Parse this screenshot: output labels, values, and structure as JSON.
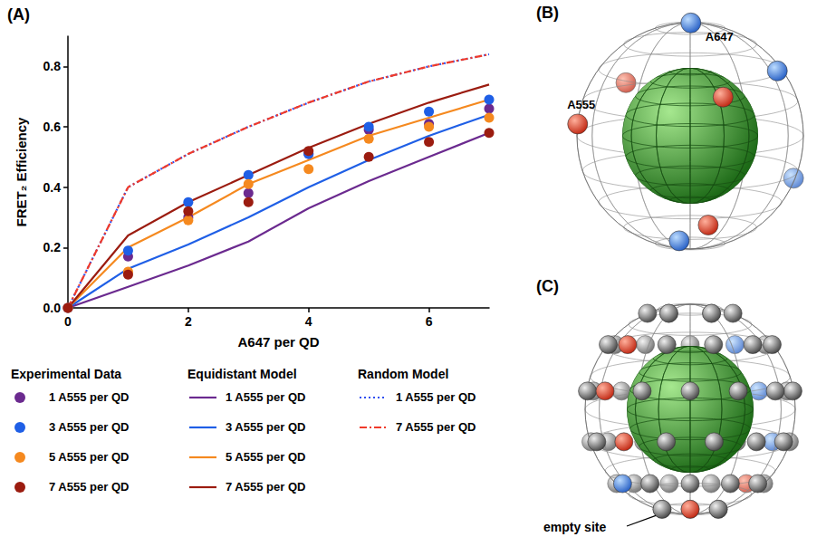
{
  "figure": {
    "panel_labels": {
      "A": "(A)",
      "B": "(B)",
      "C": "(C)"
    }
  },
  "chart_data": {
    "type": "scatter",
    "x_label": "A647 per QD",
    "y_label": "FRET₂ Efficiency",
    "x": [
      0,
      1,
      2,
      3,
      4,
      5,
      6,
      7
    ],
    "xlim": [
      0,
      7
    ],
    "xticks": [
      0,
      2,
      4,
      6
    ],
    "ylim": [
      0,
      0.9
    ],
    "yticks": [
      {
        "value": 0,
        "label": "0.0"
      },
      {
        "value": 0.2,
        "label": "0.2"
      },
      {
        "value": 0.4,
        "label": "0.4"
      },
      {
        "value": 0.6,
        "label": "0.6"
      },
      {
        "value": 0.8,
        "label": "0.8"
      }
    ],
    "grid": false,
    "legend": "bottom",
    "series": [
      {
        "name": "1 A555 per QD",
        "group": "Experimental Data",
        "type": "scatter",
        "marker": "circle",
        "color": "#6b2a8f",
        "values": [
          0,
          0.17,
          0.3,
          0.38,
          0.51,
          0.59,
          0.61,
          0.66
        ]
      },
      {
        "name": "3 A555 per QD",
        "group": "Experimental Data",
        "type": "scatter",
        "marker": "circle",
        "color": "#1f5fe6",
        "values": [
          0,
          0.19,
          0.35,
          0.44,
          0.51,
          0.6,
          0.65,
          0.69
        ]
      },
      {
        "name": "5 A555 per QD",
        "group": "Experimental Data",
        "type": "scatter",
        "marker": "circle",
        "color": "#f5891f",
        "values": [
          0,
          0.12,
          0.29,
          0.41,
          0.46,
          0.56,
          0.6,
          0.63
        ]
      },
      {
        "name": "7 A555 per QD",
        "group": "Experimental Data",
        "type": "scatter",
        "marker": "circle",
        "color": "#9b1c10",
        "values": [
          0,
          0.11,
          0.32,
          0.35,
          0.52,
          0.5,
          0.55,
          0.58
        ]
      },
      {
        "name": "1 A555 per QD",
        "group": "Equidistant Model",
        "type": "line",
        "line_style": "solid",
        "color": "#6b2a8f",
        "values": [
          0,
          0.07,
          0.14,
          0.22,
          0.33,
          0.42,
          0.5,
          0.58
        ]
      },
      {
        "name": "3 A555 per QD",
        "group": "Equidistant Model",
        "type": "line",
        "line_style": "solid",
        "color": "#1f5fe6",
        "values": [
          0,
          0.13,
          0.21,
          0.3,
          0.4,
          0.49,
          0.57,
          0.64
        ]
      },
      {
        "name": "5 A555 per QD",
        "group": "Equidistant Model",
        "type": "line",
        "line_style": "solid",
        "color": "#f5891f",
        "values": [
          0,
          0.2,
          0.3,
          0.41,
          0.49,
          0.57,
          0.63,
          0.69
        ]
      },
      {
        "name": "7 A555 per QD",
        "group": "Equidistant Model",
        "type": "line",
        "line_style": "solid",
        "color": "#9b1c10",
        "values": [
          0,
          0.24,
          0.35,
          0.44,
          0.53,
          0.61,
          0.68,
          0.74
        ]
      },
      {
        "name": "1 A555 per QD",
        "group": "Random Model",
        "type": "line",
        "line_style": "dotted",
        "color": "#2f4ff0",
        "values": [
          0,
          0.4,
          0.51,
          0.6,
          0.68,
          0.75,
          0.8,
          0.84
        ]
      },
      {
        "name": "7 A555 per QD",
        "group": "Random Model",
        "type": "line",
        "line_style": "dashdot",
        "color": "#f03a2a",
        "values": [
          0,
          0.4,
          0.51,
          0.6,
          0.68,
          0.75,
          0.8,
          0.84
        ]
      }
    ]
  },
  "diagram_B": {
    "labels": {
      "acceptor": "A647",
      "donor": "A555"
    }
  },
  "diagram_C": {
    "labels": {
      "empty": "empty site"
    }
  }
}
